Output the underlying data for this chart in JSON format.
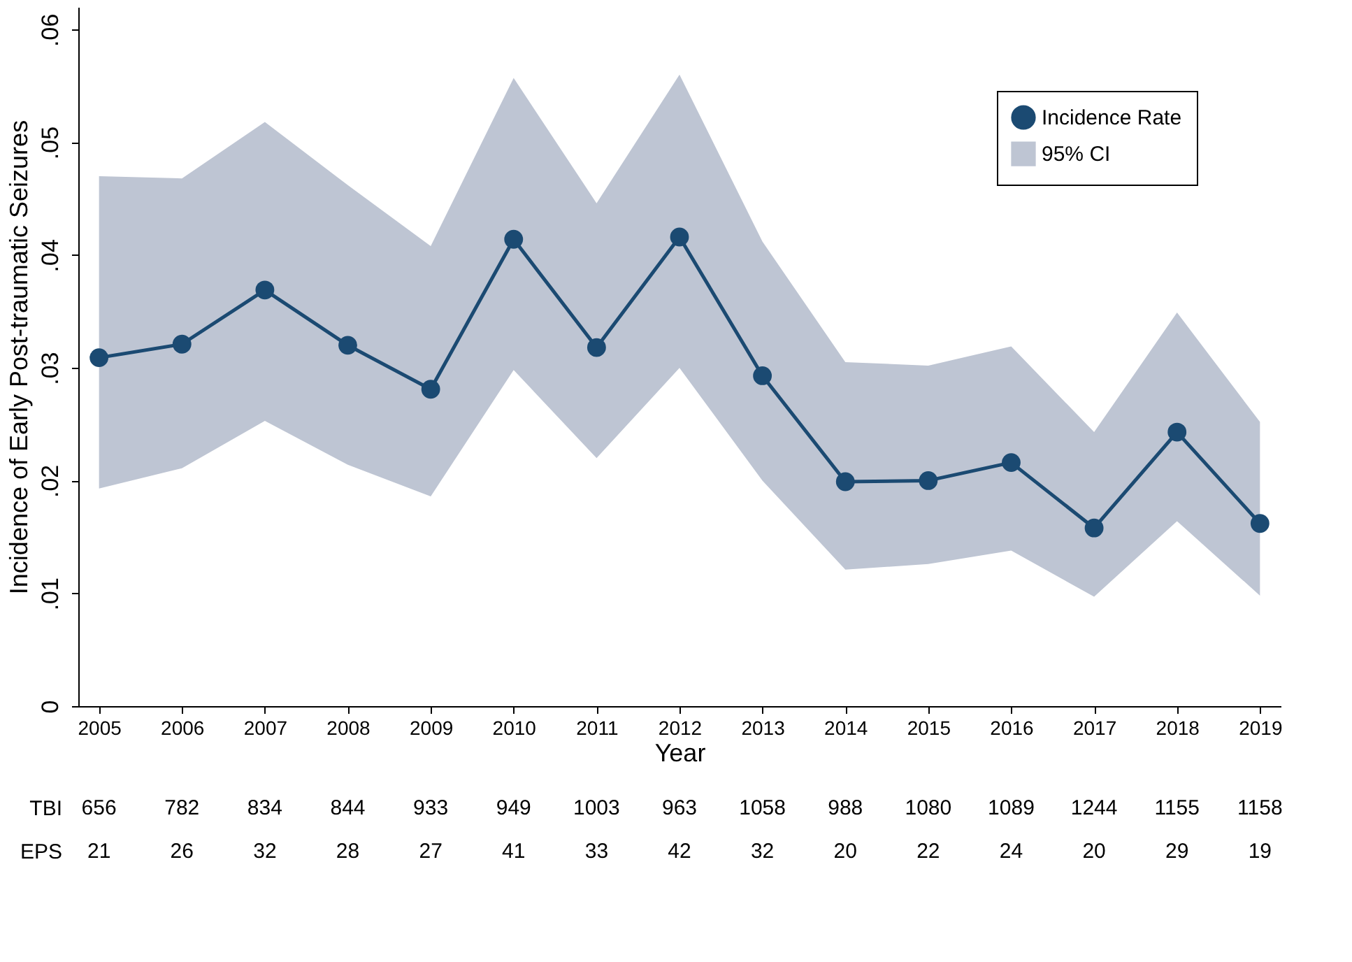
{
  "chart_data": {
    "type": "line",
    "xlabel": "Year",
    "ylabel": "Incidence of Early Post-traumatic Seizures",
    "categories": [
      "2005",
      "2006",
      "2007",
      "2008",
      "2009",
      "2010",
      "2011",
      "2012",
      "2013",
      "2014",
      "2015",
      "2016",
      "2017",
      "2018",
      "2019"
    ],
    "series": [
      {
        "name": "Incidence Rate",
        "color": "#1b4a72",
        "values": [
          0.0309,
          0.0321,
          0.0369,
          0.032,
          0.0281,
          0.0414,
          0.0318,
          0.0416,
          0.0293,
          0.0199,
          0.02,
          0.0216,
          0.0158,
          0.0243,
          0.0162
        ]
      },
      {
        "name": "95% CI",
        "type": "area",
        "color": "#bec5d3",
        "values": [
          null,
          null,
          null,
          null,
          null,
          null,
          null,
          null,
          null,
          null,
          null,
          null,
          null,
          null,
          null
        ],
        "lower": [
          0.0193,
          0.0211,
          0.0253,
          0.0214,
          0.0186,
          0.0298,
          0.022,
          0.03,
          0.02,
          0.0121,
          0.0126,
          0.0138,
          0.0097,
          0.0164,
          0.0098
        ],
        "upper": [
          0.047,
          0.0468,
          0.0518,
          0.0462,
          0.0408,
          0.0557,
          0.0446,
          0.056,
          0.0412,
          0.0305,
          0.0302,
          0.0319,
          0.0243,
          0.0349,
          0.0252
        ]
      }
    ],
    "ylim": [
      0,
      0.062
    ],
    "yticks": [
      {
        "value": 0,
        "label": "0"
      },
      {
        "value": 0.01,
        "label": ".01"
      },
      {
        "value": 0.02,
        "label": ".02"
      },
      {
        "value": 0.03,
        "label": ".03"
      },
      {
        "value": 0.04,
        "label": ".04"
      },
      {
        "value": 0.05,
        "label": ".05"
      },
      {
        "value": 0.06,
        "label": ".06"
      }
    ],
    "grid": false,
    "legend": "top right",
    "marker": "circle",
    "line_style": "solid",
    "annotations": [
      "TBI",
      "656",
      "782",
      "834",
      "844",
      "933",
      "949",
      "1003",
      "963",
      "1058",
      "988",
      "1080",
      "1089",
      "1244",
      "1155",
      "1158",
      "EPS",
      "21",
      "26",
      "32",
      "28",
      "27",
      "41",
      "33",
      "42",
      "32",
      "20",
      "22",
      "24",
      "20",
      "29",
      "19"
    ]
  }
}
